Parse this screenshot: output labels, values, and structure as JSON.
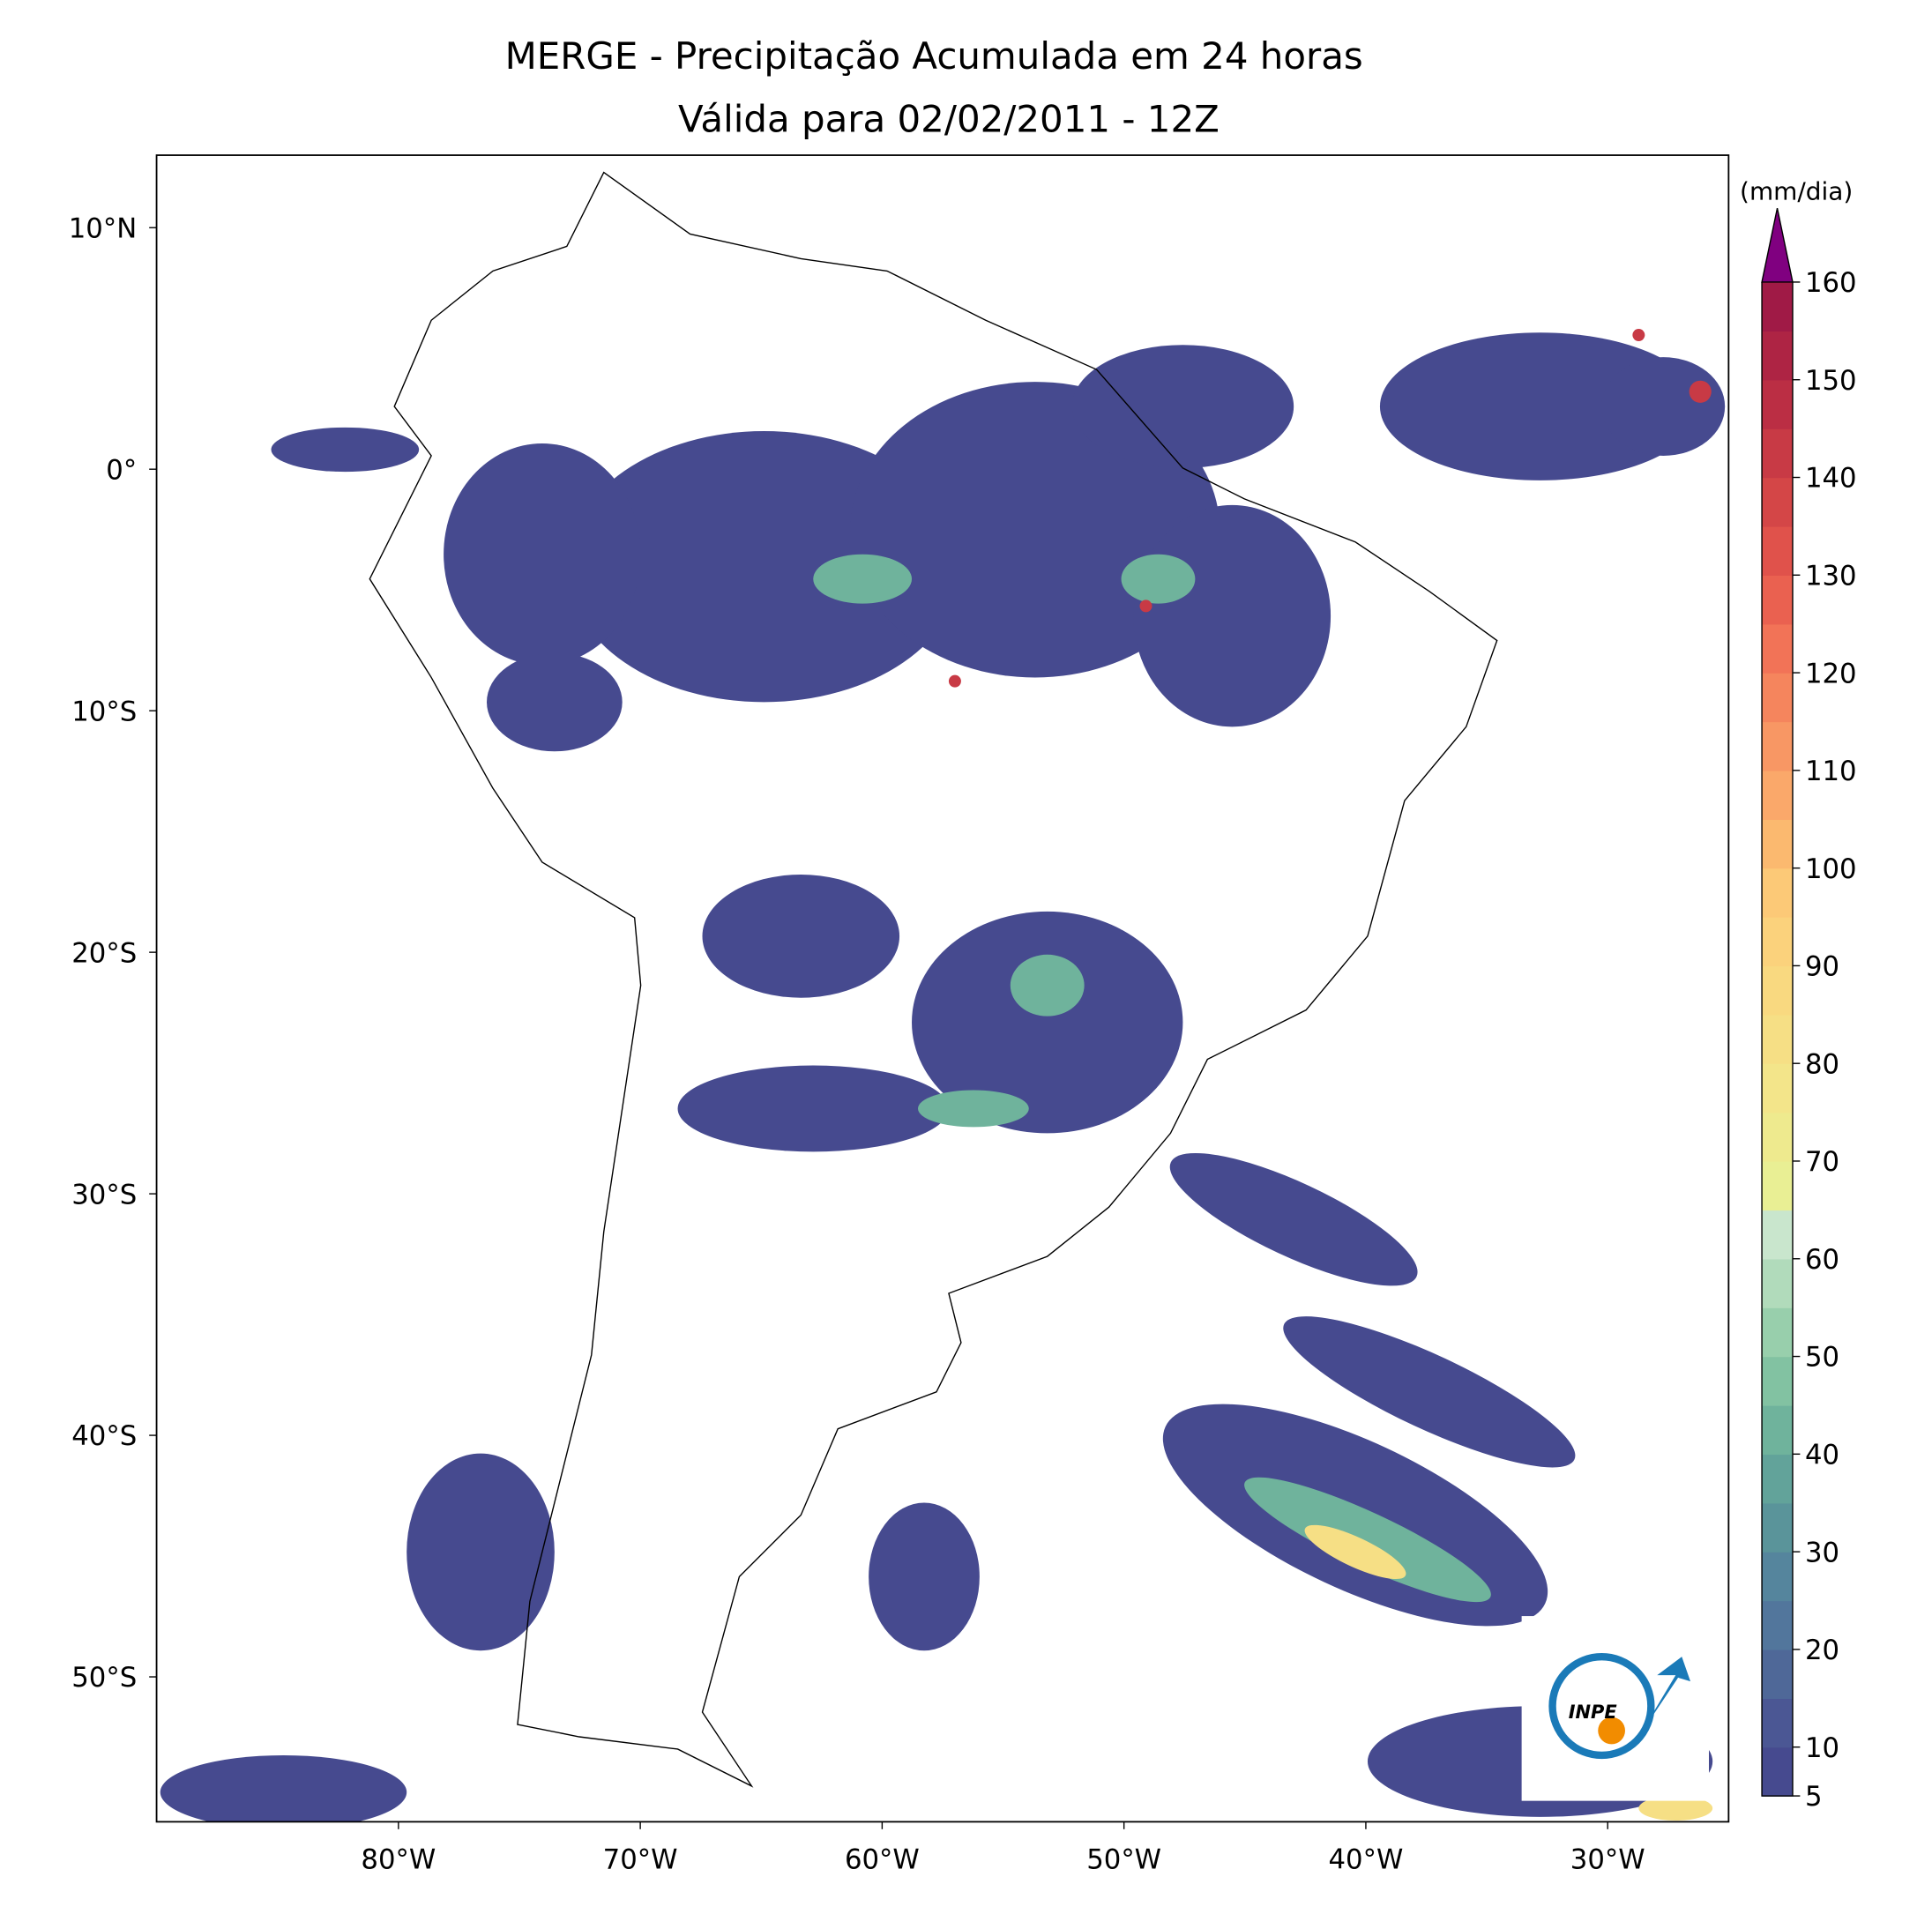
{
  "map": {
    "title": "MERGE - Precipitação Acumulada em 24 horas",
    "subtitle": "Válida para 02/02/2011 - 12Z",
    "xlim": [
      -90,
      -25
    ],
    "ylim": [
      -56,
      13
    ],
    "xticks": [
      {
        "value": -80,
        "label": "80°W"
      },
      {
        "value": -70,
        "label": "70°W"
      },
      {
        "value": -60,
        "label": "60°W"
      },
      {
        "value": -50,
        "label": "50°W"
      },
      {
        "value": -40,
        "label": "40°W"
      },
      {
        "value": -30,
        "label": "30°W"
      }
    ],
    "yticks": [
      {
        "value": 10,
        "label": "10°N"
      },
      {
        "value": 0,
        "label": "0°"
      },
      {
        "value": -10,
        "label": "10°S"
      },
      {
        "value": -20,
        "label": "20°S"
      },
      {
        "value": -30,
        "label": "30°S"
      },
      {
        "value": -40,
        "label": "40°S"
      },
      {
        "value": -50,
        "label": "50°S"
      }
    ],
    "colorbar": {
      "label": "(mm/dia)",
      "lim": [
        5,
        160
      ],
      "ticks": [
        5,
        10,
        20,
        30,
        40,
        50,
        60,
        70,
        80,
        90,
        100,
        110,
        120,
        130,
        140,
        150,
        160
      ],
      "colors": [
        "#464a8f",
        "#4b5794",
        "#4f6898",
        "#52769c",
        "#55859d",
        "#5a949a",
        "#62a39a",
        "#6fb39c",
        "#82c2a2",
        "#98cfac",
        "#b1dbbb",
        "#c9e6cd",
        "#e9ef94",
        "#eeea8e",
        "#f3e58a",
        "#f6df85",
        "#f9d980",
        "#fbd27c",
        "#fcc977",
        "#fbb96f",
        "#faa86a",
        "#f89764",
        "#f5855d",
        "#f27357",
        "#ea6150",
        "#e0524b",
        "#d44647",
        "#c83a45",
        "#bb2e44",
        "#ae2444",
        "#a01a46"
      ],
      "extend_color": "#800080"
    },
    "logo": "INPE"
  }
}
